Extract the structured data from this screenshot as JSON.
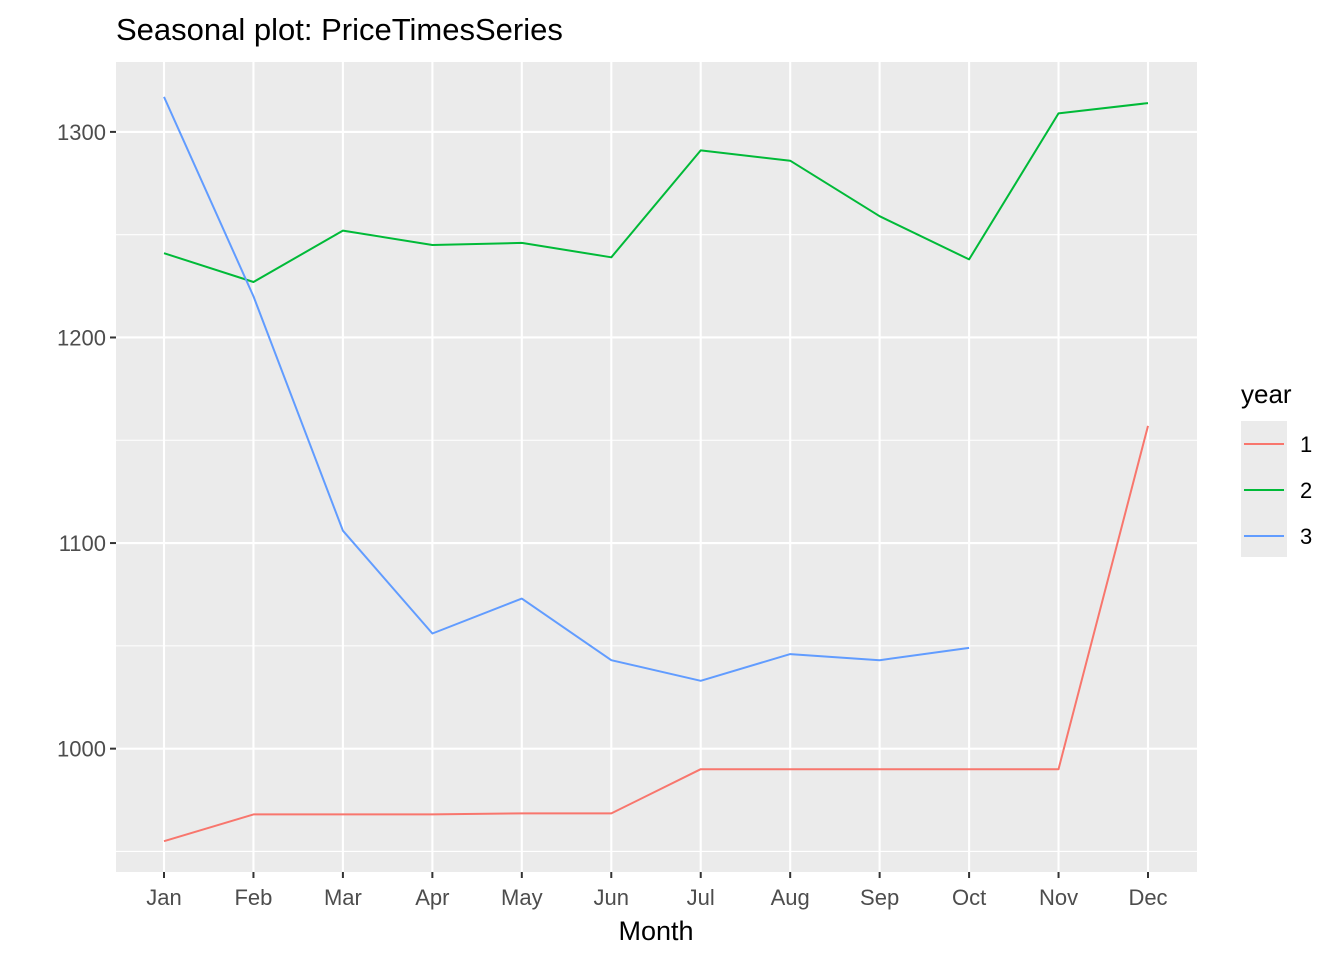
{
  "chart_data": {
    "type": "line",
    "title": "Seasonal plot: PriceTimesSeries",
    "xlabel": "Month",
    "ylabel": "",
    "categories": [
      "Jan",
      "Feb",
      "Mar",
      "Apr",
      "May",
      "Jun",
      "Jul",
      "Aug",
      "Sep",
      "Oct",
      "Nov",
      "Dec"
    ],
    "ylim": [
      940,
      1334
    ],
    "yticks": [
      1000,
      1100,
      1200,
      1300
    ],
    "grid": true,
    "legend": {
      "title": "year",
      "position": "right"
    },
    "series": [
      {
        "name": "1",
        "color": "#F8766D",
        "values": [
          955,
          968,
          968,
          968,
          968.5,
          968.5,
          990,
          990,
          990,
          990,
          990,
          1157
        ]
      },
      {
        "name": "2",
        "color": "#00BA38",
        "values": [
          1241,
          1227,
          1252,
          1245,
          1246,
          1239,
          1291,
          1286,
          1259,
          1238,
          1309,
          1314
        ]
      },
      {
        "name": "3",
        "color": "#619CFF",
        "values": [
          1317,
          1220,
          1106,
          1056,
          1073,
          1043,
          1033,
          1046,
          1043,
          1049,
          null,
          null
        ]
      }
    ]
  }
}
